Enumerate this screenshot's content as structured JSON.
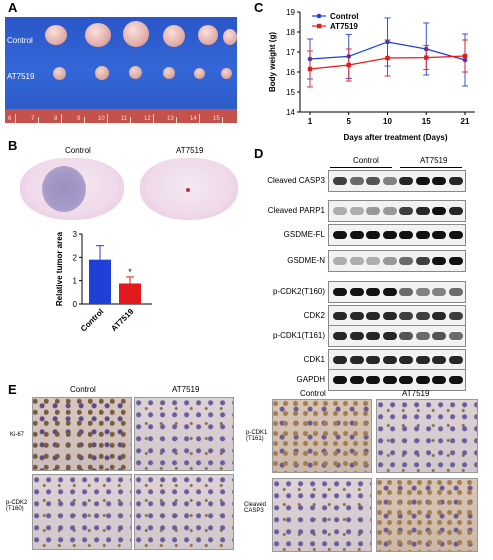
{
  "panels": {
    "A": "A",
    "B": "B",
    "C": "C",
    "D": "D",
    "E": "E"
  },
  "panelA": {
    "row_labels": [
      "Control",
      "AT7519"
    ],
    "ruler_numbers": [
      "6",
      "7",
      "8",
      "9",
      "10",
      "11",
      "12",
      "13",
      "14",
      "15"
    ]
  },
  "panelB": {
    "image_labels": [
      "Control",
      "AT7519"
    ],
    "bar_chart": {
      "ylabel": "Relative tumor area",
      "categories": [
        "Control",
        "AT7519"
      ],
      "yticks": [
        "0",
        "1",
        "2",
        "3"
      ],
      "significance": "*"
    }
  },
  "panelC": {
    "legend": [
      "Control",
      "AT7519"
    ],
    "xlabel": "Days after treatment (Days)",
    "ylabel": "Body weight (g)",
    "xticks": [
      "1",
      "5",
      "10",
      "15",
      "21"
    ],
    "yticks": [
      "14",
      "15",
      "16",
      "17",
      "18",
      "19"
    ]
  },
  "panelD": {
    "group_labels": [
      "Control",
      "AT7519"
    ],
    "blots": [
      "Cleaved CASP3",
      "Cleaved PARP1",
      "GSDME-FL",
      "GSDME-N",
      "p-CDK2(T160)",
      "CDK2",
      "p-CDK1(T161)",
      "CDK1",
      "GAPDH"
    ]
  },
  "panelE": {
    "left": {
      "col_labels": [
        "Control",
        "AT7519"
      ],
      "row_labels": [
        "Ki-67",
        "p-CDK2\n(T160)"
      ]
    },
    "right": {
      "col_labels": [
        "Control",
        "AT7519"
      ],
      "row_labels": [
        "p-CDK1\n(T161)",
        "Cleaved\nCASP3"
      ]
    }
  },
  "colors": {
    "control": "#1f3fd6",
    "at7519": "#e31a1c"
  },
  "chart_data": [
    {
      "type": "bar",
      "categories": [
        "Control",
        "AT7519"
      ],
      "values": [
        1.9,
        0.88
      ],
      "errors": [
        0.6,
        0.28
      ],
      "ylabel": "Relative tumor area",
      "ylim": [
        0,
        3
      ],
      "annotations": [
        "*"
      ]
    },
    {
      "type": "line",
      "x": [
        1,
        5,
        10,
        15,
        21
      ],
      "series": [
        {
          "name": "Control",
          "values": [
            16.65,
            16.78,
            17.5,
            17.15,
            16.6
          ],
          "errors": [
            1.0,
            1.1,
            1.2,
            1.3,
            1.3
          ]
        },
        {
          "name": "AT7519",
          "values": [
            16.15,
            16.35,
            16.7,
            16.72,
            16.8
          ],
          "errors": [
            0.9,
            0.8,
            0.9,
            0.6,
            0.8
          ]
        }
      ],
      "xlabel": "Days after treatment (Days)",
      "ylabel": "Body weight (g)",
      "ylim": [
        14,
        19
      ]
    }
  ]
}
